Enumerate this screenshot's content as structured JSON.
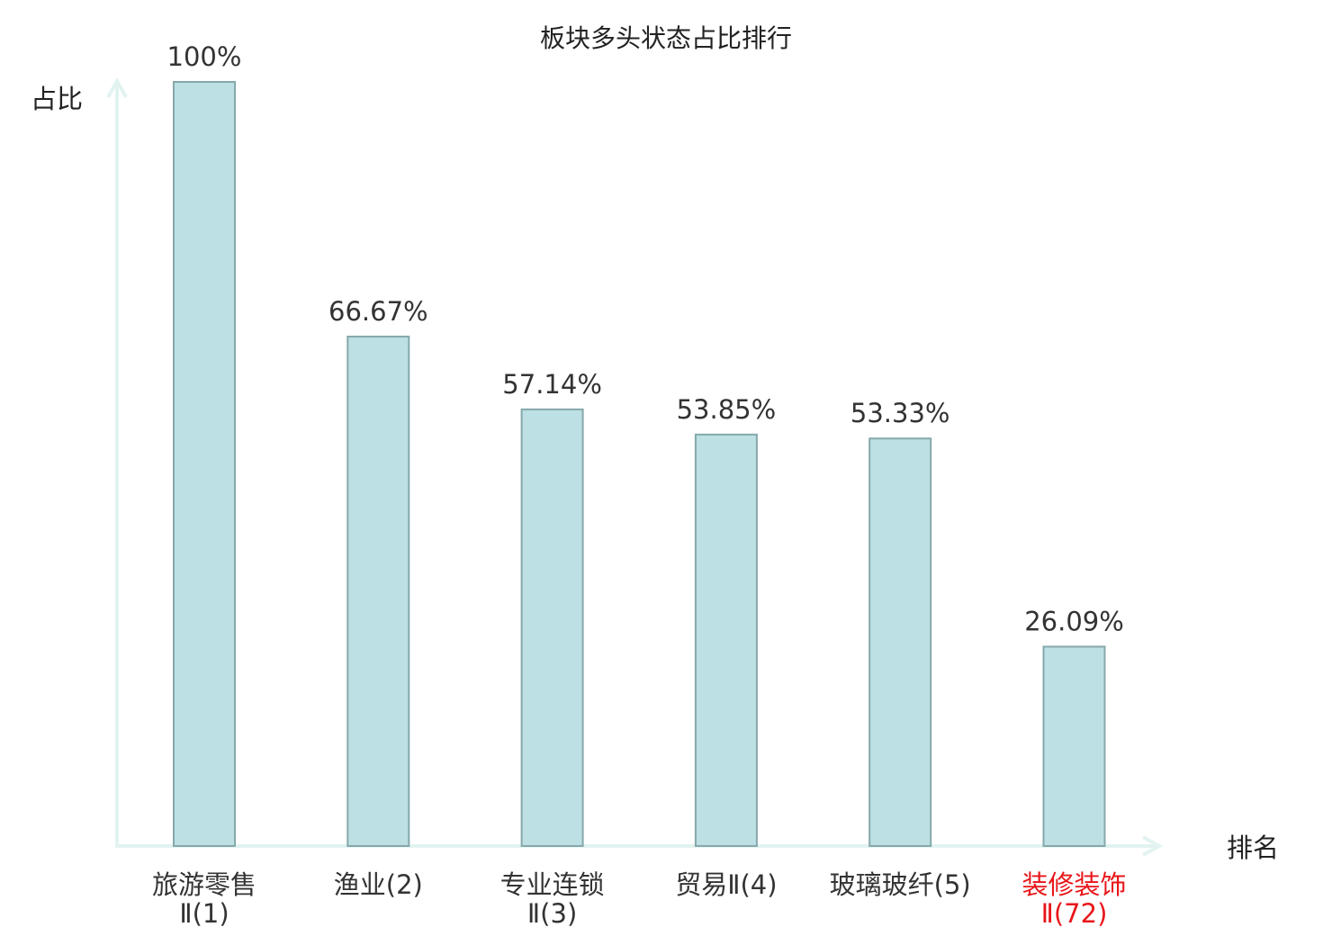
{
  "chart_data": {
    "type": "bar",
    "title": "板块多头状态占比排行",
    "xlabel": "排名",
    "ylabel": "占比",
    "ylim": [
      0,
      100
    ],
    "unit": "%",
    "categories": [
      {
        "name": "旅游零售",
        "sub": "Ⅱ(1)"
      },
      {
        "name": "渔业(2)",
        "sub": ""
      },
      {
        "name": "专业连锁",
        "sub": "Ⅱ(3)"
      },
      {
        "name": "贸易Ⅱ(4)",
        "sub": ""
      },
      {
        "name": "玻璃玻纤(5)",
        "sub": ""
      },
      {
        "name": "装修装饰",
        "sub": "Ⅱ(72)"
      }
    ],
    "values": [
      100,
      66.67,
      57.14,
      53.85,
      53.33,
      26.09
    ],
    "value_labels": [
      "100%",
      "66.67%",
      "57.14%",
      "53.85%",
      "53.33%",
      "26.09%"
    ],
    "highlight_index": 5,
    "colors": {
      "bar_fill": "#bce0e3",
      "bar_stroke": "#86a8ab",
      "axis": "#e2f3f1",
      "highlight_text": "#e8161a",
      "text": "#333333"
    }
  }
}
